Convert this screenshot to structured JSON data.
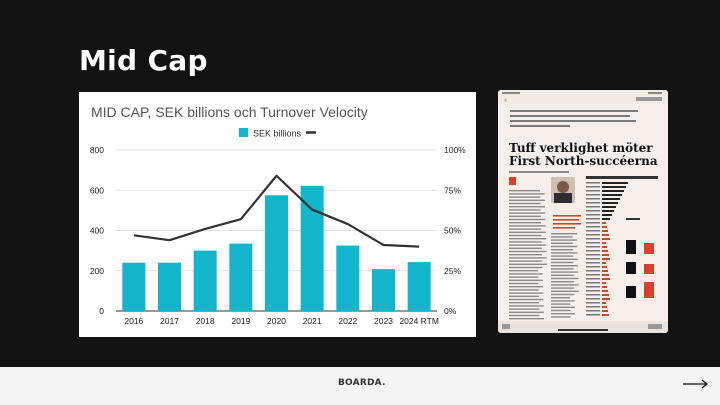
{
  "slide": {
    "title": "Mid Cap"
  },
  "chart_data": {
    "type": "bar",
    "title": "MID CAP, SEK billions och Turnover Velocity",
    "categories": [
      "2016",
      "2017",
      "2018",
      "2019",
      "2020",
      "2021",
      "2022",
      "2023",
      "2024 RTM"
    ],
    "series": [
      {
        "name": "SEK billions",
        "type": "bar",
        "axis": "left",
        "color": "#12b5cb",
        "values": [
          240,
          240,
          300,
          335,
          575,
          622,
          325,
          208,
          243
        ]
      },
      {
        "name": "",
        "type": "line",
        "axis": "right",
        "color": "#333333",
        "values": [
          0.47,
          0.44,
          0.51,
          0.57,
          0.84,
          0.63,
          0.54,
          0.41,
          0.4
        ]
      }
    ],
    "ylim": [
      0,
      800
    ],
    "yticks": [
      "0",
      "200",
      "400",
      "600",
      "800"
    ],
    "y2lim": [
      0,
      1
    ],
    "y2ticks": [
      "0%",
      "25%",
      "50%",
      "75%",
      "100%"
    ],
    "grid": true,
    "legend": "top-center"
  },
  "article": {
    "headline_line1": "Tuff verklighet möter",
    "headline_line2": "First North-succéerna"
  },
  "footer": {
    "logo": "BOARDA."
  },
  "colors": {
    "background": "#121214",
    "footer": "#f4f4f4",
    "bar": "#12b5cb",
    "line": "#333333",
    "article_red": "#d9402e"
  }
}
